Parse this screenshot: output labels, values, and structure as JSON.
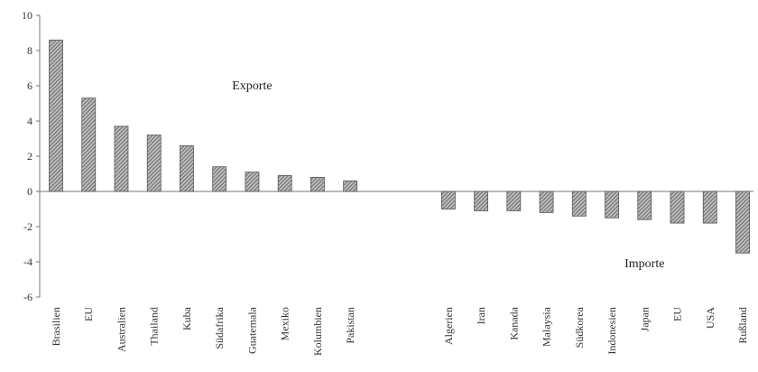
{
  "chart_data": {
    "type": "bar",
    "title": "",
    "xlabel": "",
    "ylabel": "",
    "ylim": [
      -6,
      10
    ],
    "yticks": [
      -6,
      -4,
      -2,
      0,
      2,
      4,
      6,
      8,
      10
    ],
    "grid": false,
    "legend": "none",
    "bar_color": "#555555",
    "annotations": [
      {
        "text": "Exporte",
        "anchor_category": "Guatemala",
        "value": 5.8
      },
      {
        "text": "Importe",
        "anchor_category": "Japan",
        "value": -4.3
      }
    ],
    "categories": [
      "Brasilien",
      "EU",
      "Australien",
      "Thailand",
      "Kuba",
      "Südafrika",
      "Guatemala",
      "Mexiko",
      "Kolumbien",
      "Pakistan",
      "",
      "",
      "Algerien",
      "Iran",
      "Kanada",
      "Malaysia",
      "Südkorea",
      "Indonesien",
      "Japan",
      "EU",
      "USA",
      "Rußland"
    ],
    "values": [
      8.6,
      5.3,
      3.7,
      3.2,
      2.6,
      1.4,
      1.1,
      0.9,
      0.8,
      0.6,
      0,
      0,
      -1.0,
      -1.1,
      -1.1,
      -1.2,
      -1.4,
      -1.5,
      -1.6,
      -1.8,
      -1.8,
      -3.5
    ]
  }
}
